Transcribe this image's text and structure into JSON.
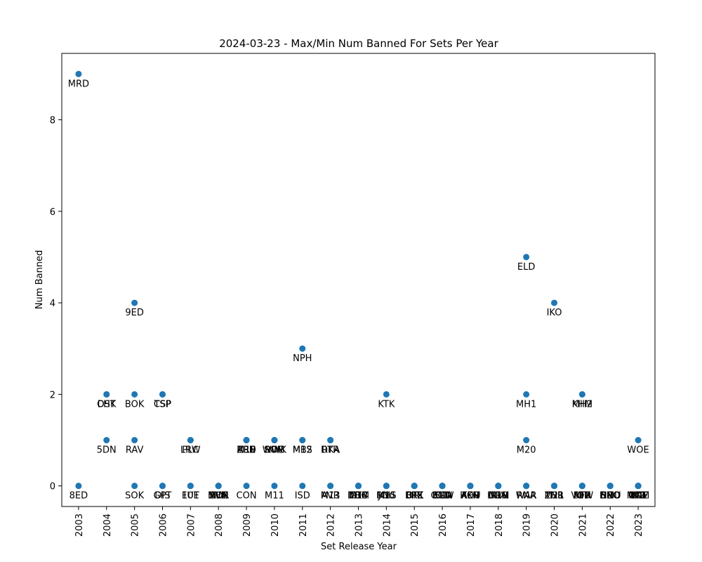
{
  "chart_data": {
    "type": "scatter",
    "title": "2024-03-23 - Max/Min Num Banned For Sets Per Year",
    "xlabel": "Set Release Year",
    "ylabel": "Num Banned",
    "xlim": [
      2002.4,
      2023.6
    ],
    "ylim": [
      -0.45,
      9.45
    ],
    "x_ticks": [
      "2003",
      "2004",
      "2005",
      "2006",
      "2007",
      "2008",
      "2009",
      "2010",
      "2011",
      "2012",
      "2013",
      "2014",
      "2015",
      "2016",
      "2017",
      "2018",
      "2019",
      "2020",
      "2021",
      "2022",
      "2023"
    ],
    "y_ticks": [
      0,
      2,
      4,
      6,
      8
    ],
    "grid": false,
    "point_color": "#1f77b4",
    "points": [
      {
        "x": 2003,
        "y": 9,
        "label": "MRD"
      },
      {
        "x": 2003,
        "y": 0,
        "label": "8ED"
      },
      {
        "x": 2004,
        "y": 2,
        "label": "CHK"
      },
      {
        "x": 2004,
        "y": 2,
        "label": "DST"
      },
      {
        "x": 2004,
        "y": 1,
        "label": "5DN"
      },
      {
        "x": 2005,
        "y": 4,
        "label": "9ED"
      },
      {
        "x": 2005,
        "y": 2,
        "label": "BOK"
      },
      {
        "x": 2005,
        "y": 1,
        "label": "RAV"
      },
      {
        "x": 2005,
        "y": 0,
        "label": "SOK"
      },
      {
        "x": 2006,
        "y": 2,
        "label": "TSP"
      },
      {
        "x": 2006,
        "y": 2,
        "label": "CSP"
      },
      {
        "x": 2006,
        "y": 0,
        "label": "GPT"
      },
      {
        "x": 2006,
        "y": 0,
        "label": "DIS"
      },
      {
        "x": 2007,
        "y": 1,
        "label": "LRW"
      },
      {
        "x": 2007,
        "y": 1,
        "label": "PLC"
      },
      {
        "x": 2007,
        "y": 0,
        "label": "10E"
      },
      {
        "x": 2007,
        "y": 0,
        "label": "FUT"
      },
      {
        "x": 2008,
        "y": 0,
        "label": "SHM"
      },
      {
        "x": 2008,
        "y": 0,
        "label": "MOR"
      },
      {
        "x": 2008,
        "y": 0,
        "label": "EVE"
      },
      {
        "x": 2008,
        "y": 0,
        "label": "ALA"
      },
      {
        "x": 2009,
        "y": 1,
        "label": "ZEN"
      },
      {
        "x": 2009,
        "y": 1,
        "label": "ARB"
      },
      {
        "x": 2009,
        "y": 1,
        "label": "M10"
      },
      {
        "x": 2009,
        "y": 0,
        "label": "CON"
      },
      {
        "x": 2010,
        "y": 1,
        "label": "WWK"
      },
      {
        "x": 2010,
        "y": 1,
        "label": "SOM"
      },
      {
        "x": 2010,
        "y": 1,
        "label": "ROE"
      },
      {
        "x": 2010,
        "y": 0,
        "label": "M11"
      },
      {
        "x": 2011,
        "y": 3,
        "label": "NPH"
      },
      {
        "x": 2011,
        "y": 1,
        "label": "MBS"
      },
      {
        "x": 2011,
        "y": 1,
        "label": "M12"
      },
      {
        "x": 2011,
        "y": 0,
        "label": "ISD"
      },
      {
        "x": 2012,
        "y": 1,
        "label": "DKA"
      },
      {
        "x": 2012,
        "y": 1,
        "label": "RTR"
      },
      {
        "x": 2012,
        "y": 0,
        "label": "AVR"
      },
      {
        "x": 2012,
        "y": 0,
        "label": "M13"
      },
      {
        "x": 2013,
        "y": 0,
        "label": "GTC"
      },
      {
        "x": 2013,
        "y": 0,
        "label": "DGM"
      },
      {
        "x": 2013,
        "y": 0,
        "label": "M14"
      },
      {
        "x": 2013,
        "y": 0,
        "label": "THS"
      },
      {
        "x": 2014,
        "y": 2,
        "label": "KTK"
      },
      {
        "x": 2014,
        "y": 0,
        "label": "BNG"
      },
      {
        "x": 2014,
        "y": 0,
        "label": "JOU"
      },
      {
        "x": 2014,
        "y": 0,
        "label": "M15"
      },
      {
        "x": 2015,
        "y": 0,
        "label": "FRF"
      },
      {
        "x": 2015,
        "y": 0,
        "label": "DTK"
      },
      {
        "x": 2015,
        "y": 0,
        "label": "ORI"
      },
      {
        "x": 2015,
        "y": 0,
        "label": "BFZ"
      },
      {
        "x": 2016,
        "y": 0,
        "label": "OGW"
      },
      {
        "x": 2016,
        "y": 0,
        "label": "SOI"
      },
      {
        "x": 2016,
        "y": 0,
        "label": "EMN"
      },
      {
        "x": 2016,
        "y": 0,
        "label": "KLD"
      },
      {
        "x": 2017,
        "y": 0,
        "label": "AER"
      },
      {
        "x": 2017,
        "y": 0,
        "label": "AKH"
      },
      {
        "x": 2017,
        "y": 0,
        "label": "HOU"
      },
      {
        "x": 2017,
        "y": 0,
        "label": "XLN"
      },
      {
        "x": 2018,
        "y": 0,
        "label": "RIX"
      },
      {
        "x": 2018,
        "y": 0,
        "label": "DOM"
      },
      {
        "x": 2018,
        "y": 0,
        "label": "M19"
      },
      {
        "x": 2018,
        "y": 0,
        "label": "GRN"
      },
      {
        "x": 2019,
        "y": 5,
        "label": "ELD"
      },
      {
        "x": 2019,
        "y": 2,
        "label": "MH1"
      },
      {
        "x": 2019,
        "y": 1,
        "label": "M20"
      },
      {
        "x": 2019,
        "y": 0,
        "label": "RNA"
      },
      {
        "x": 2019,
        "y": 0,
        "label": "WAR"
      },
      {
        "x": 2020,
        "y": 4,
        "label": "IKO"
      },
      {
        "x": 2020,
        "y": 0,
        "label": "THB"
      },
      {
        "x": 2020,
        "y": 0,
        "label": "M21"
      },
      {
        "x": 2020,
        "y": 0,
        "label": "ZNR"
      },
      {
        "x": 2021,
        "y": 2,
        "label": "KHM"
      },
      {
        "x": 2021,
        "y": 2,
        "label": "MH2"
      },
      {
        "x": 2021,
        "y": 0,
        "label": "STX"
      },
      {
        "x": 2021,
        "y": 0,
        "label": "AFR"
      },
      {
        "x": 2021,
        "y": 0,
        "label": "MID"
      },
      {
        "x": 2021,
        "y": 0,
        "label": "VOW"
      },
      {
        "x": 2022,
        "y": 0,
        "label": "NEO"
      },
      {
        "x": 2022,
        "y": 0,
        "label": "SNC"
      },
      {
        "x": 2022,
        "y": 0,
        "label": "DMU"
      },
      {
        "x": 2022,
        "y": 0,
        "label": "BRO"
      },
      {
        "x": 2023,
        "y": 1,
        "label": "WOE"
      },
      {
        "x": 2023,
        "y": 0,
        "label": "ONE"
      },
      {
        "x": 2023,
        "y": 0,
        "label": "MOM"
      },
      {
        "x": 2023,
        "y": 0,
        "label": "MAT"
      },
      {
        "x": 2023,
        "y": 0,
        "label": "LTR"
      },
      {
        "x": 2023,
        "y": 0,
        "label": "LCI"
      }
    ]
  }
}
